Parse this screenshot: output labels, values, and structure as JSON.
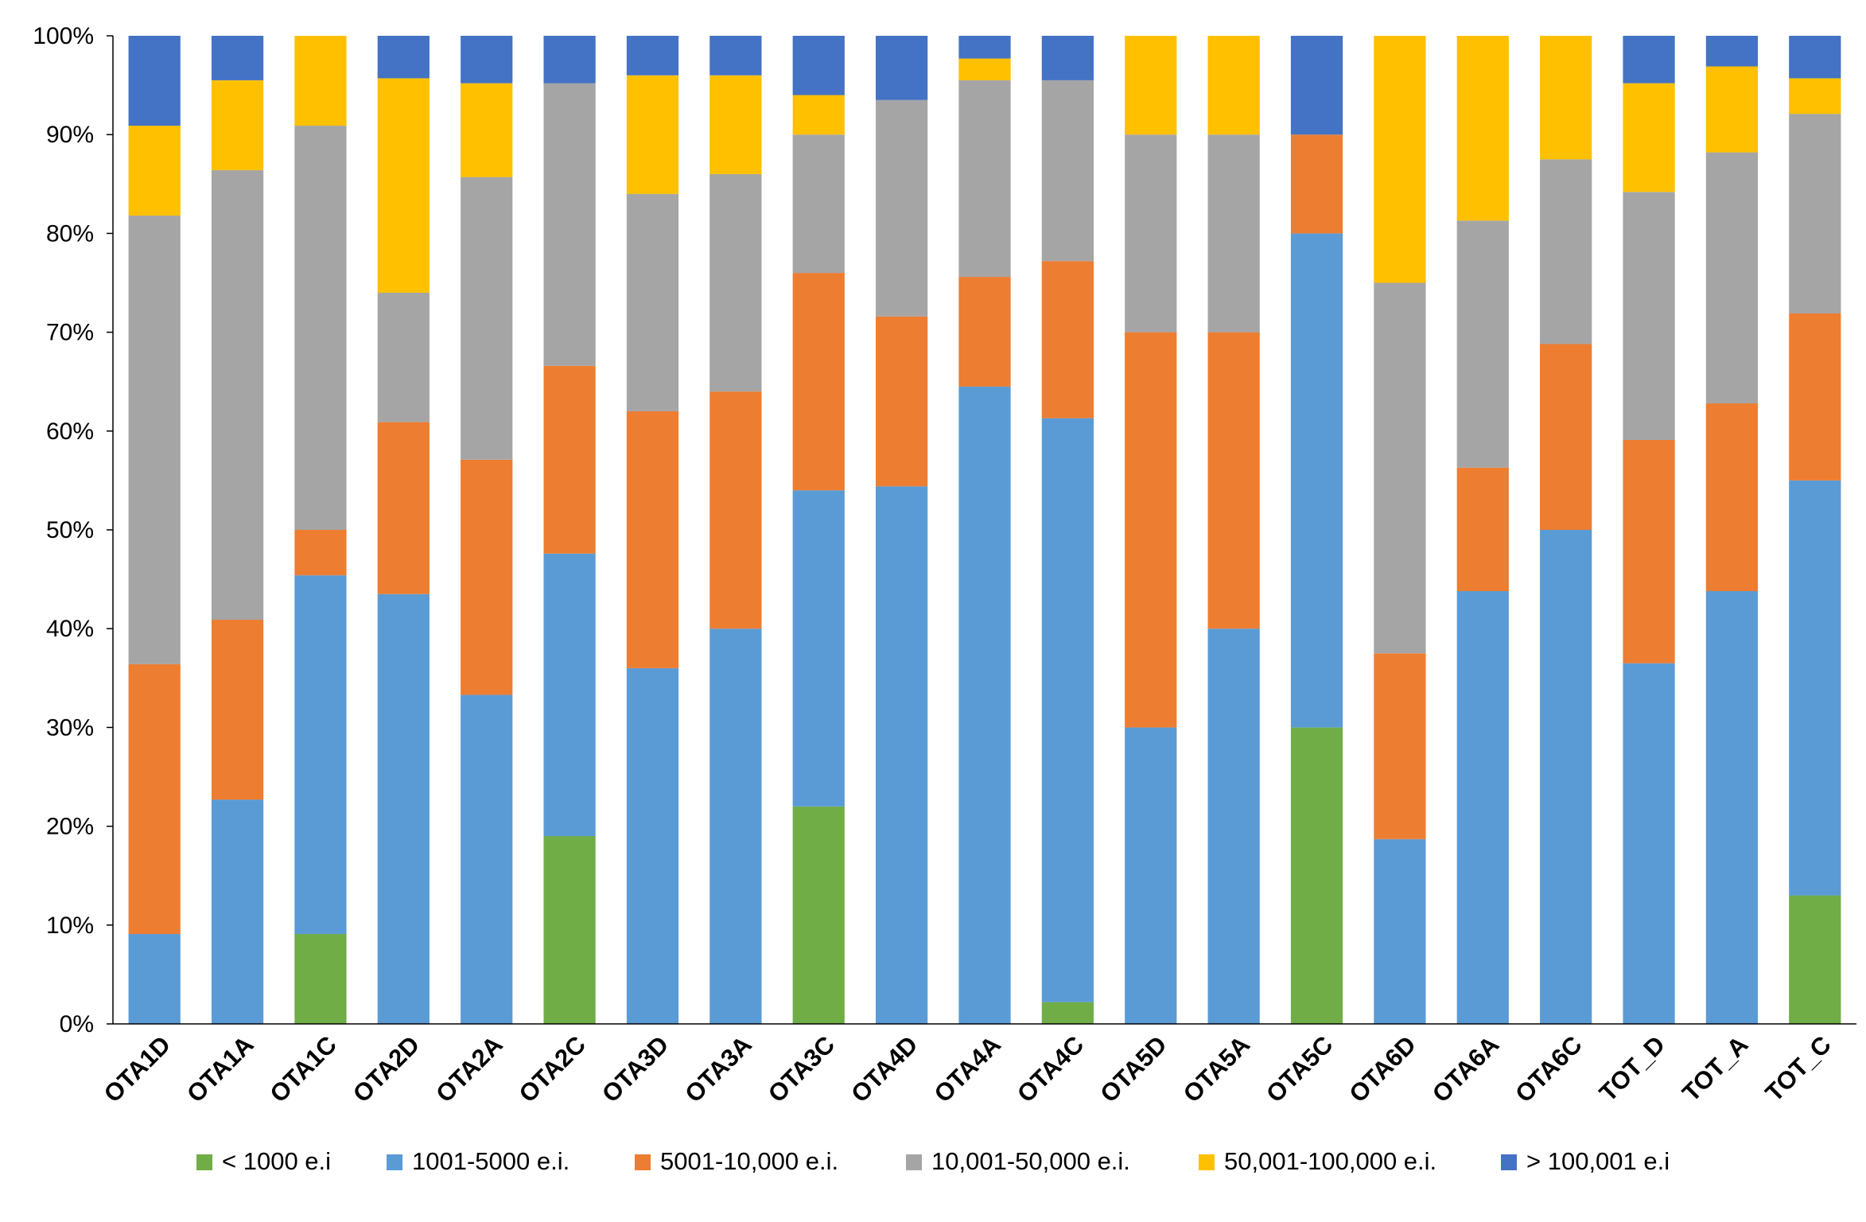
{
  "chart_data": {
    "type": "bar",
    "stacked": true,
    "normalized": true,
    "title": "",
    "xlabel": "",
    "ylabel": "",
    "ylim": [
      0,
      100
    ],
    "ytick_labels": [
      "0%",
      "10%",
      "20%",
      "30%",
      "40%",
      "50%",
      "60%",
      "70%",
      "80%",
      "90%",
      "100%"
    ],
    "grid": false,
    "legend_position": "bottom",
    "categories": [
      "OTA1D",
      "OTA1A",
      "OTA1C",
      "OTA2D",
      "OTA2A",
      "OTA2C",
      "OTA3D",
      "OTA3A",
      "OTA3C",
      "OTA4D",
      "OTA4A",
      "OTA4C",
      "OTA5D",
      "OTA5A",
      "OTA5C",
      "OTA6D",
      "OTA6A",
      "OTA6C",
      "TOT_D",
      "TOT_A",
      "TOT_C"
    ],
    "series": [
      {
        "name": "< 1000 e.i",
        "color": "#70AD47",
        "values": [
          0,
          0,
          9.1,
          0,
          0,
          19,
          0,
          0,
          22,
          0,
          0,
          2.2,
          0,
          0,
          30,
          0,
          0,
          0,
          0,
          0,
          13
        ]
      },
      {
        "name": "1001-5000 e.i.",
        "color": "#5B9BD5",
        "values": [
          9.1,
          22.7,
          36.3,
          43.5,
          33.3,
          28.6,
          36,
          40,
          32,
          54.4,
          64.5,
          59.1,
          30,
          40,
          50,
          18.7,
          43.8,
          50,
          36.5,
          43.8,
          42
        ]
      },
      {
        "name": "5001-10,000 e.i.",
        "color": "#ED7D31",
        "values": [
          27.3,
          18.2,
          4.6,
          17.4,
          23.8,
          19,
          26,
          24,
          22,
          17.2,
          11.1,
          15.9,
          40,
          30,
          10,
          18.8,
          12.5,
          18.8,
          22.6,
          19,
          16.9
        ]
      },
      {
        "name": "10,001-50,000 e.i.",
        "color": "#A5A5A5",
        "values": [
          45.4,
          45.5,
          40.9,
          13.1,
          28.6,
          28.6,
          22,
          22,
          14,
          21.9,
          19.9,
          18.3,
          20,
          20,
          0,
          37.5,
          25,
          18.7,
          25.1,
          25.4,
          20.2
        ]
      },
      {
        "name": "50,001-100,000 e.i.",
        "color": "#FFC000",
        "values": [
          9.1,
          9.1,
          9.1,
          21.7,
          9.5,
          0,
          12,
          10,
          4,
          0,
          2.2,
          0,
          10,
          10,
          0,
          25,
          18.7,
          12.5,
          11,
          8.7,
          3.6
        ]
      },
      {
        "name": "> 100,001 e.i",
        "color": "#4472C4",
        "values": [
          9.1,
          4.5,
          0,
          4.3,
          4.8,
          4.8,
          4,
          4,
          6,
          6.5,
          2.3,
          4.5,
          0,
          0,
          10,
          0,
          0,
          0,
          4.8,
          3.1,
          4.3
        ]
      }
    ]
  }
}
